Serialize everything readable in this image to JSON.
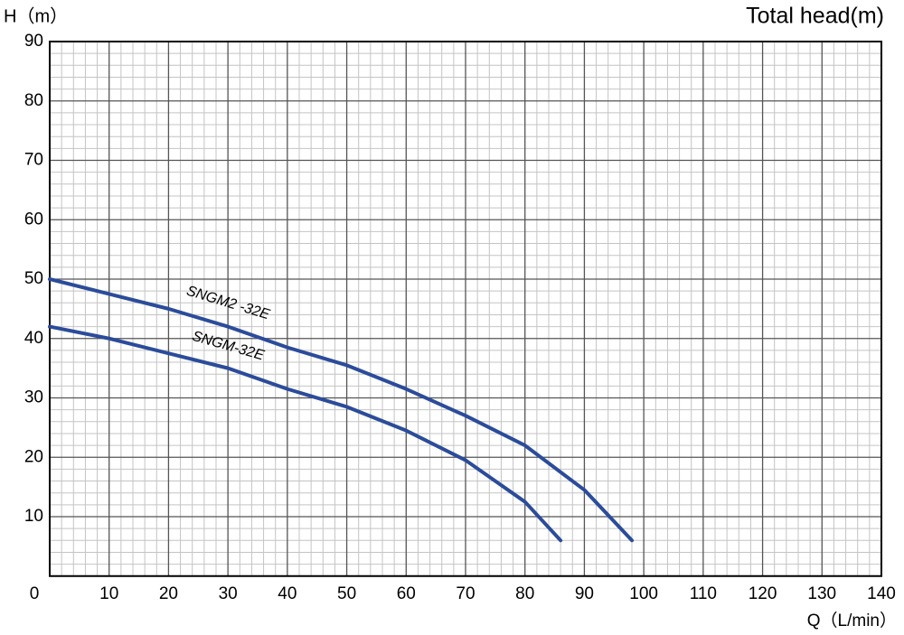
{
  "chart_data": {
    "type": "line",
    "title": "Total head(m)",
    "y_label": "H（m）",
    "x_label": "Q（L/min）",
    "x": [
      0,
      10,
      20,
      30,
      40,
      50,
      60,
      70,
      80,
      90,
      98
    ],
    "series": [
      {
        "name": "SNGM2 -32E",
        "color": "#2b4c9b",
        "x": [
          0,
          10,
          20,
          30,
          40,
          50,
          60,
          70,
          80,
          90,
          98
        ],
        "values": [
          50,
          47.5,
          45,
          42,
          38.5,
          35.5,
          31.5,
          27,
          22,
          14.5,
          6
        ]
      },
      {
        "name": "SNGM-32E",
        "color": "#2b4c9b",
        "x": [
          0,
          10,
          20,
          30,
          40,
          50,
          60,
          70,
          80,
          86
        ],
        "values": [
          42,
          40,
          37.5,
          35,
          31.5,
          28.5,
          24.5,
          19.5,
          12.5,
          6
        ]
      }
    ],
    "xlim": [
      0,
      140
    ],
    "xticks": [
      0,
      10,
      20,
      30,
      40,
      50,
      60,
      70,
      80,
      90,
      100,
      110,
      120,
      130,
      140
    ],
    "ylim": [
      0,
      90
    ],
    "yticks": [
      10,
      20,
      30,
      40,
      50,
      60,
      70,
      80,
      90
    ],
    "grid": true,
    "minor_grid": 5
  }
}
